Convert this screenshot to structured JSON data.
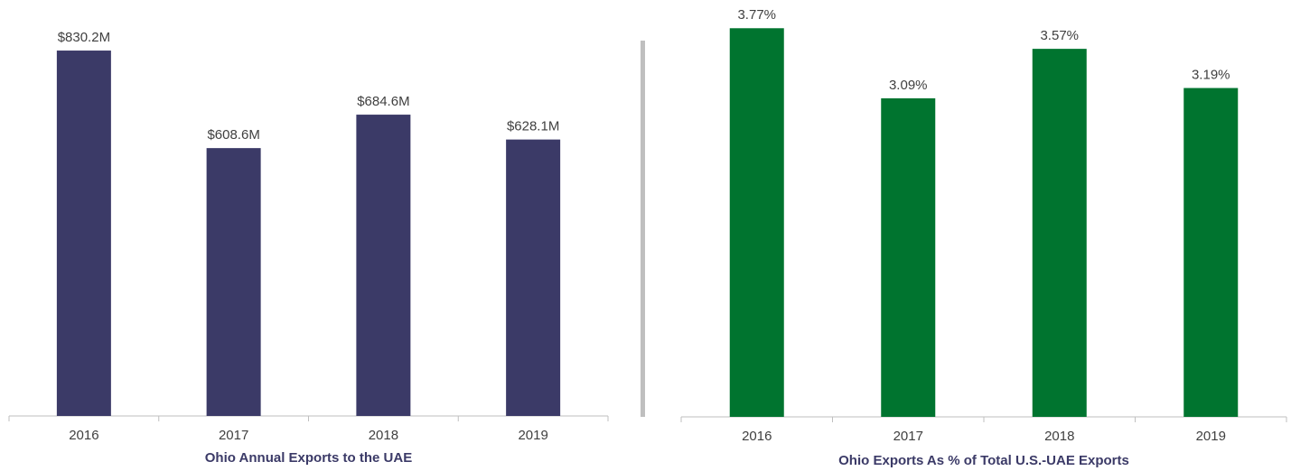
{
  "chart_data": [
    {
      "type": "bar",
      "title": "Ohio Annual Exports to the UAE",
      "categories": [
        "2016",
        "2017",
        "2018",
        "2019"
      ],
      "values": [
        830.2,
        608.6,
        684.6,
        628.1
      ],
      "value_labels": [
        "$830.2M",
        "$608.6M",
        "$684.6M",
        "$628.1M"
      ],
      "color": "#3b3a67",
      "ylim": [
        0,
        900
      ]
    },
    {
      "type": "bar",
      "title": "Ohio Exports As % of Total U.S.-UAE Exports",
      "categories": [
        "2016",
        "2017",
        "2018",
        "2019"
      ],
      "values": [
        3.77,
        3.09,
        3.57,
        3.19
      ],
      "value_labels": [
        "3.77%",
        "3.09%",
        "3.57%",
        "3.19%"
      ],
      "color": "#00742f",
      "ylim": [
        0,
        4
      ]
    }
  ]
}
